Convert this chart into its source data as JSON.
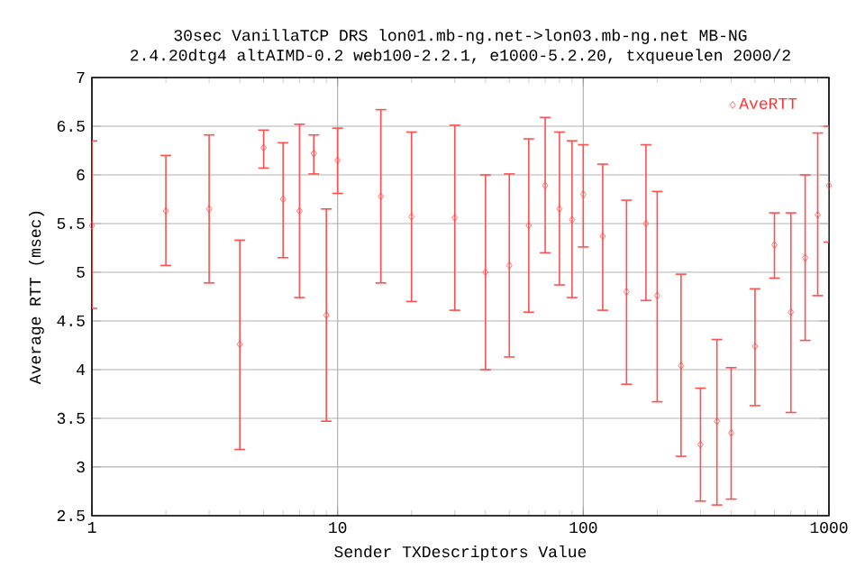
{
  "chart_data": {
    "type": "scatter",
    "title": "30sec VanillaTCP DRS lon01.mb-ng.net->lon03.mb-ng.net MB-NG",
    "subtitle": "2.4.20dtg4 altAIMD-0.2 web100-2.2.1, e1000-5.2.20, txqueuelen 2000/2",
    "xlabel": "Sender TXDescriptors Value",
    "ylabel": "Average RTT (msec)",
    "x": [
      1,
      2,
      3,
      4,
      5,
      6,
      7,
      8,
      9,
      10,
      15,
      20,
      30,
      40,
      50,
      60,
      70,
      80,
      90,
      100,
      120,
      150,
      180,
      200,
      250,
      300,
      350,
      400,
      500,
      600,
      700,
      800,
      900,
      1000
    ],
    "series": [
      {
        "name": "AveRTT",
        "color": "#ff5050",
        "values": [
          5.48,
          5.63,
          5.65,
          4.26,
          6.28,
          5.75,
          5.63,
          6.22,
          4.56,
          6.15,
          5.78,
          5.57,
          5.56,
          5.0,
          5.07,
          5.48,
          5.89,
          5.65,
          5.54,
          5.8,
          5.37,
          4.8,
          5.5,
          4.76,
          4.04,
          3.23,
          3.47,
          3.35,
          4.24,
          5.28,
          4.59,
          5.15,
          5.59,
          5.89
        ],
        "errors": [
          [
            4.63,
            6.35
          ],
          [
            5.07,
            6.2
          ],
          [
            4.89,
            6.41
          ],
          [
            3.18,
            5.33
          ],
          [
            6.07,
            6.46
          ],
          [
            5.15,
            6.33
          ],
          [
            4.74,
            6.52
          ],
          [
            6.01,
            6.41
          ],
          [
            3.47,
            5.65
          ],
          [
            5.81,
            6.48
          ],
          [
            4.89,
            6.67
          ],
          [
            4.7,
            6.44
          ],
          [
            4.61,
            6.51
          ],
          [
            4.0,
            6.0
          ],
          [
            4.13,
            6.01
          ],
          [
            4.59,
            6.37
          ],
          [
            5.2,
            6.59
          ],
          [
            4.87,
            6.44
          ],
          [
            4.74,
            6.35
          ],
          [
            5.26,
            6.31
          ],
          [
            4.61,
            6.11
          ],
          [
            3.85,
            5.74
          ],
          [
            4.71,
            6.31
          ],
          [
            3.67,
            5.83
          ],
          [
            3.11,
            4.98
          ],
          [
            2.65,
            3.81
          ],
          [
            2.61,
            4.31
          ],
          [
            2.67,
            4.02
          ],
          [
            3.63,
            4.83
          ],
          [
            4.94,
            5.61
          ],
          [
            3.56,
            5.61
          ],
          [
            4.3,
            6.0
          ],
          [
            4.76,
            6.43
          ],
          [
            5.31,
            6.5
          ]
        ]
      }
    ],
    "xlim": [
      1,
      1000
    ],
    "xticks": [
      1,
      10,
      100,
      1000
    ],
    "ylim": [
      2.5,
      7
    ],
    "yticks": [
      2.5,
      3,
      3.5,
      4,
      4.5,
      5,
      5.5,
      6,
      6.5,
      7
    ],
    "log": "x",
    "grid": true,
    "legend": "top right",
    "marker": "diamond"
  }
}
